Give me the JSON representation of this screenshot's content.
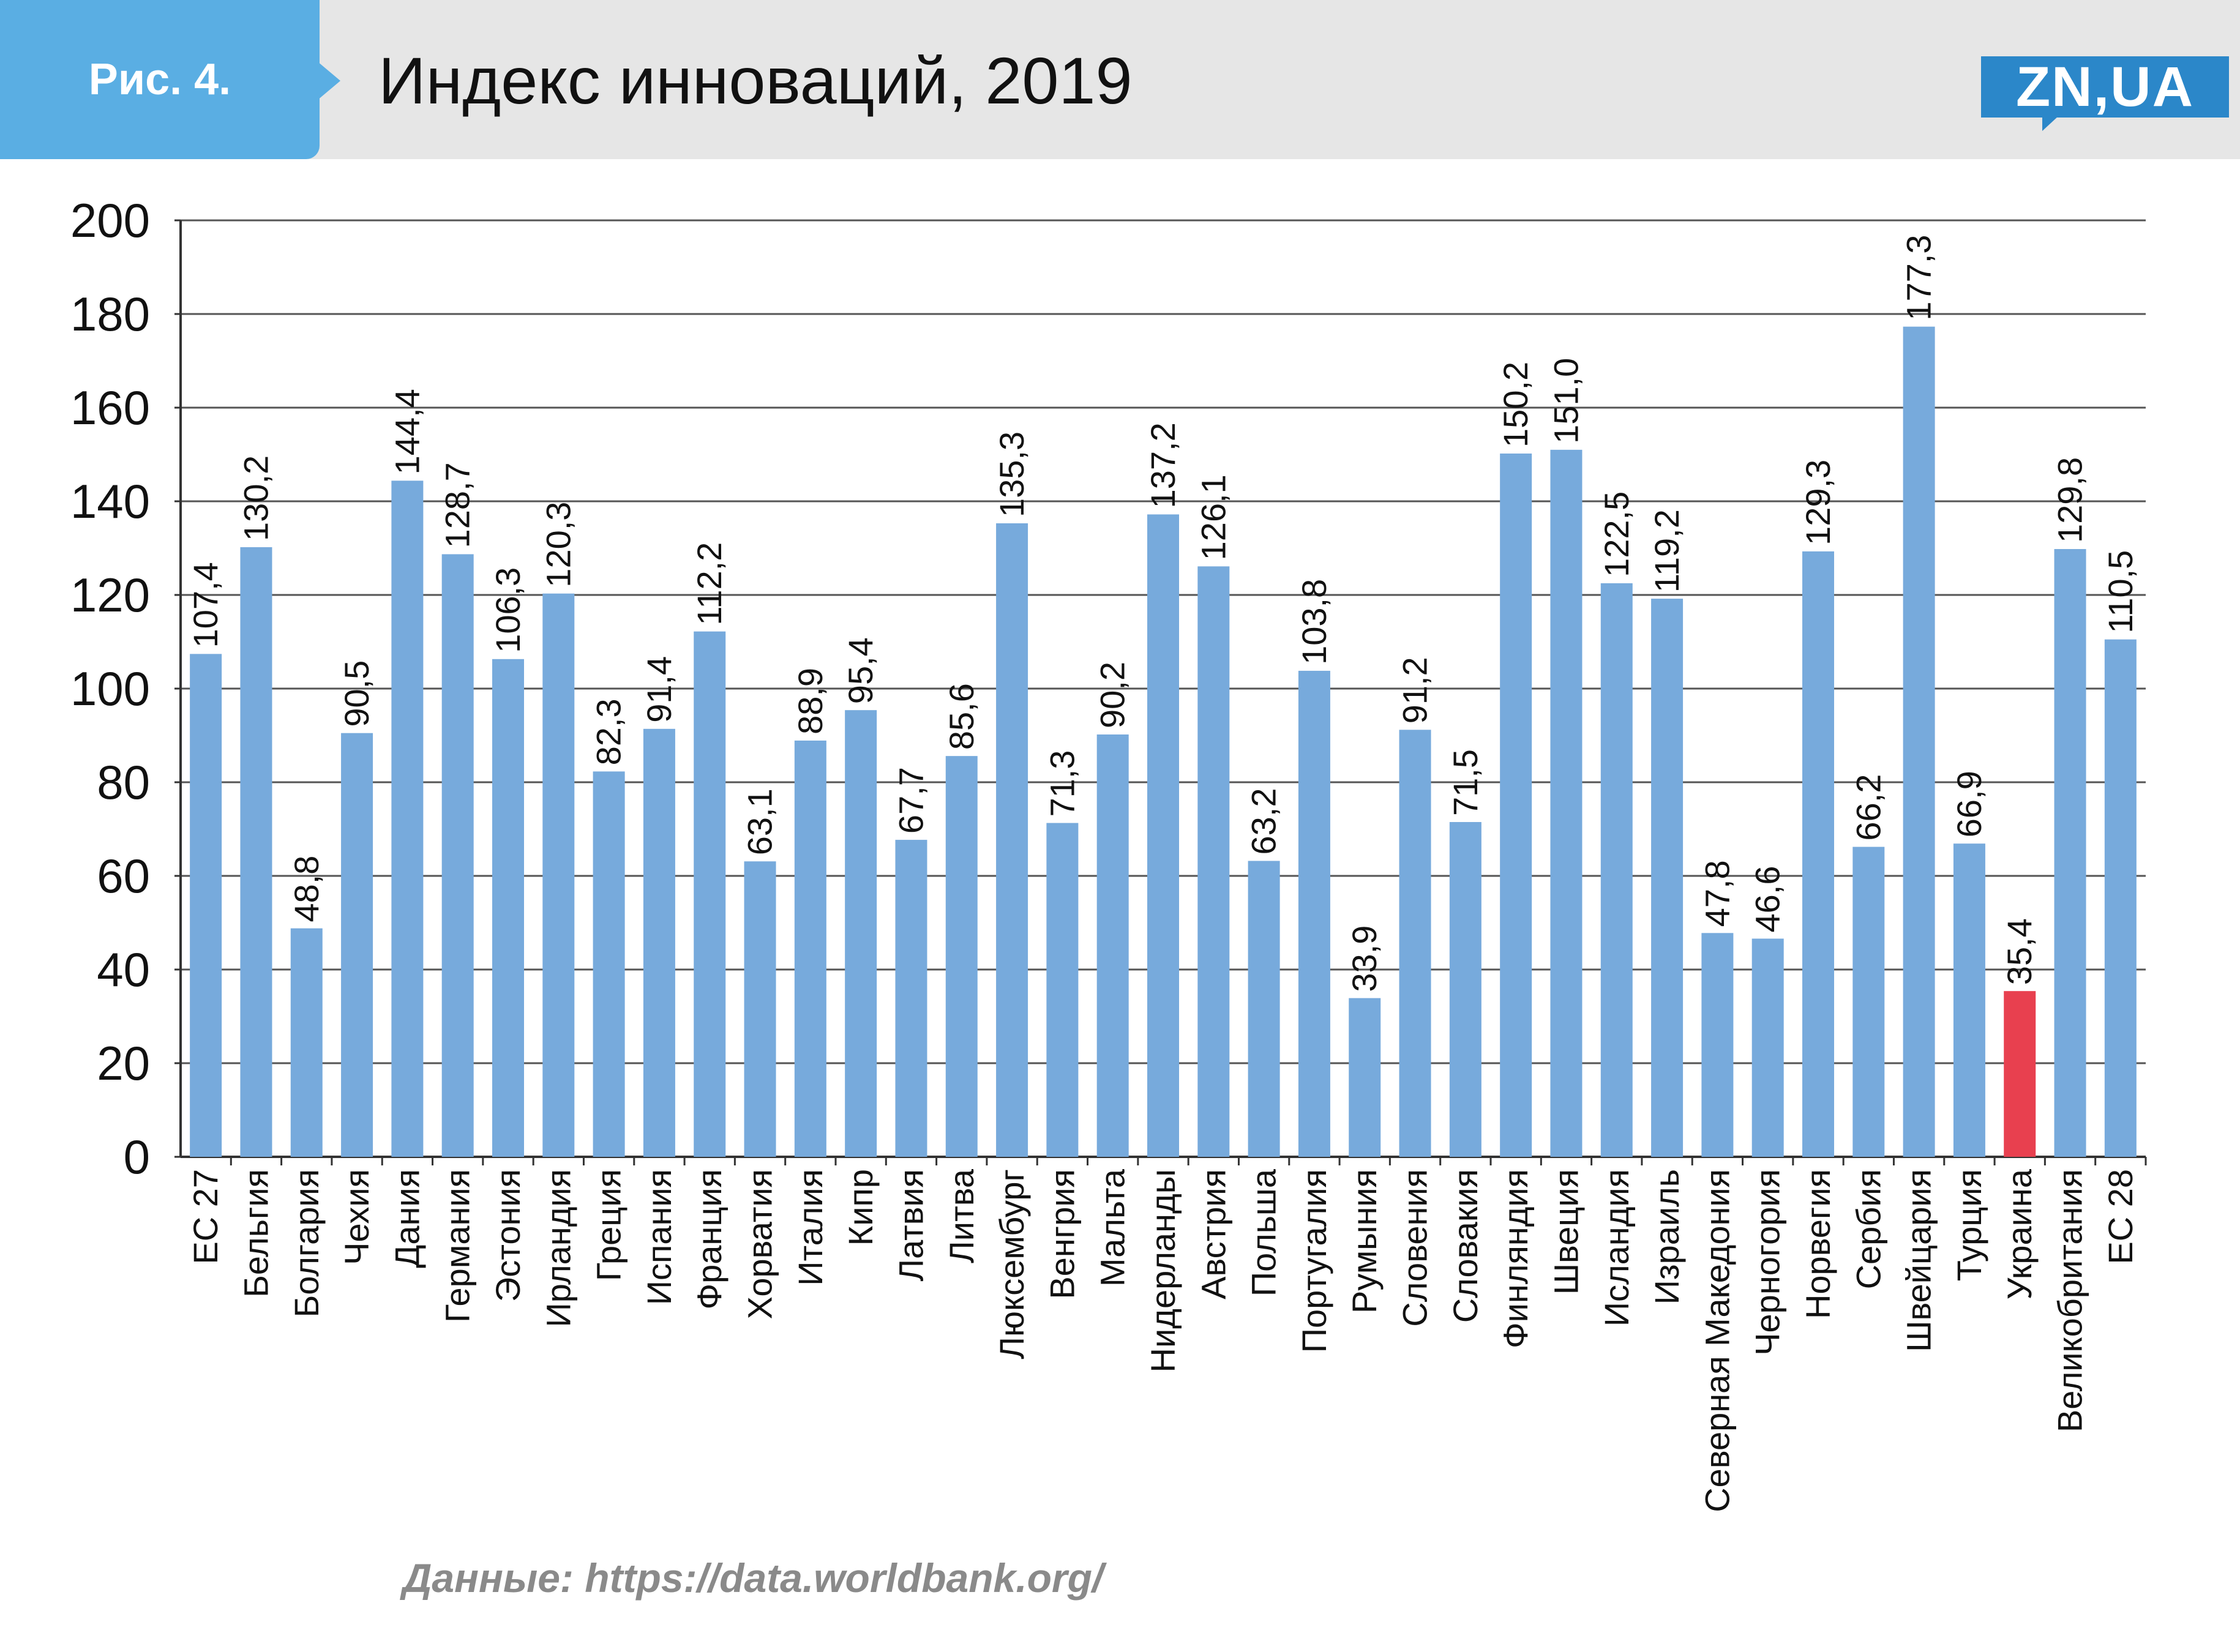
{
  "header": {
    "figure_label": "Рис. 4.",
    "title": "Индекс инноваций, 2019",
    "logo_text": "ZN,UA"
  },
  "footer": {
    "source": "Данные: https://data.worldbank.org/"
  },
  "colors": {
    "bar": "#77aadc",
    "highlight": "#e8404f",
    "grid": "#555555",
    "badge": "#5aaee3",
    "logo": "#2b87c9"
  },
  "chart_data": {
    "type": "bar",
    "title": "Индекс инноваций, 2019",
    "xlabel": "",
    "ylabel": "",
    "ylim": [
      0,
      200
    ],
    "yticks": [
      0,
      20,
      40,
      60,
      80,
      100,
      120,
      140,
      160,
      180,
      200
    ],
    "grid": true,
    "highlight_category": "Украина",
    "categories": [
      "ЕС 27",
      "Бельгия",
      "Болгария",
      "Чехия",
      "Дания",
      "Германия",
      "Эстония",
      "Ирландия",
      "Греция",
      "Испания",
      "Франция",
      "Хорватия",
      "Италия",
      "Кипр",
      "Латвия",
      "Литва",
      "Люксембург",
      "Венгрия",
      "Мальта",
      "Нидерланды",
      "Австрия",
      "Польша",
      "Португалия",
      "Румыния",
      "Словения",
      "Словакия",
      "Финляндия",
      "Швеция",
      "Исландия",
      "Израиль",
      "Северная Македония",
      "Черногория",
      "Норвегия",
      "Сербия",
      "Швейцария",
      "Турция",
      "Украина",
      "Великобритания",
      "ЕС 28"
    ],
    "values": [
      107.4,
      130.2,
      48.8,
      90.5,
      144.4,
      128.7,
      106.3,
      120.3,
      82.3,
      91.4,
      112.2,
      63.1,
      88.9,
      95.4,
      67.7,
      85.6,
      135.3,
      71.3,
      90.2,
      137.2,
      126.1,
      63.2,
      103.8,
      33.9,
      91.2,
      71.5,
      150.2,
      151.0,
      122.5,
      119.2,
      47.8,
      46.6,
      129.3,
      66.2,
      177.3,
      66.9,
      35.4,
      129.8,
      110.5
    ],
    "value_labels": [
      "107,4",
      "130,2",
      "48,8",
      "90,5",
      "144,4",
      "128,7",
      "106,3",
      "120,3",
      "82,3",
      "91,4",
      "112,2",
      "63,1",
      "88,9",
      "95,4",
      "67,7",
      "85,6",
      "135,3",
      "71,3",
      "90,2",
      "137,2",
      "126,1",
      "63,2",
      "103,8",
      "33,9",
      "91,2",
      "71,5",
      "150,2",
      "151,0",
      "122,5",
      "119,2",
      "47,8",
      "46,6",
      "129,3",
      "66,2",
      "177,3",
      "66,9",
      "35,4",
      "129,8",
      "110,5"
    ]
  }
}
